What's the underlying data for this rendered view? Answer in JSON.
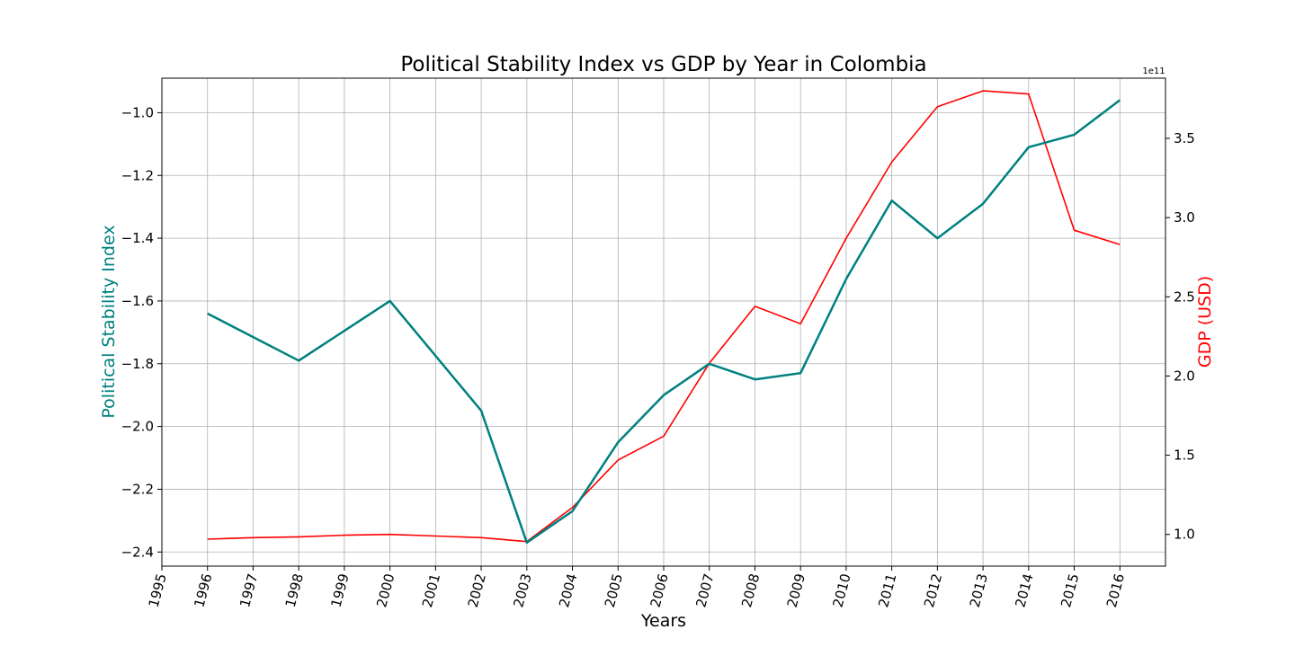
{
  "chart_data": {
    "type": "line",
    "title": "Political Stability Index vs GDP by Year in Colombia",
    "xlabel": "Years",
    "ylabel_left": "Political Stability Index",
    "ylabel_right": "GDP (USD)",
    "right_axis_offset_label": "1e11",
    "xlim": [
      1995,
      2017
    ],
    "x_ticks": [
      "1995",
      "1996",
      "1997",
      "1998",
      "1999",
      "2000",
      "2001",
      "2002",
      "2003",
      "2004",
      "2005",
      "2006",
      "2007",
      "2008",
      "2009",
      "2010",
      "2011",
      "2012",
      "2013",
      "2014",
      "2015",
      "2016"
    ],
    "ylim_left": [
      -2.445,
      -0.89
    ],
    "y_ticks_left": [
      "-2.4",
      "-2.2",
      "-2.0",
      "-1.8",
      "-1.6",
      "-1.4",
      "-1.2",
      "-1.0"
    ],
    "ylim_right": [
      0.8,
      3.88
    ],
    "y_ticks_right": [
      "1.0",
      "1.5",
      "2.0",
      "2.5",
      "3.0",
      "3.5"
    ],
    "grid": true,
    "colors": {
      "stability": "#008080",
      "gdp": "#ff0000"
    },
    "series": [
      {
        "name": "Political Stability Index",
        "axis": "left",
        "x": [
          1996,
          1998,
          2000,
          2002,
          2003,
          2004,
          2005,
          2006,
          2007,
          2008,
          2009,
          2010,
          2011,
          2012,
          2013,
          2014,
          2015,
          2016
        ],
        "values": [
          -1.64,
          -1.79,
          -1.6,
          -1.95,
          -2.37,
          -2.27,
          -2.05,
          -1.9,
          -1.8,
          -1.85,
          -1.83,
          -1.53,
          -1.28,
          -1.4,
          -1.29,
          -1.11,
          -1.07,
          -0.96
        ]
      },
      {
        "name": "GDP (USD)",
        "axis": "right",
        "x": [
          1996,
          1997,
          1998,
          1999,
          2000,
          2001,
          2002,
          2003,
          2004,
          2005,
          2006,
          2007,
          2008,
          2009,
          2010,
          2011,
          2012,
          2013,
          2014,
          2015,
          2016
        ],
        "values": [
          0.97,
          0.98,
          0.985,
          0.995,
          1.0,
          0.99,
          0.98,
          0.955,
          1.17,
          1.47,
          1.62,
          2.08,
          2.44,
          2.33,
          2.87,
          3.35,
          3.7,
          3.8,
          3.78,
          2.92,
          2.83
        ]
      }
    ]
  }
}
